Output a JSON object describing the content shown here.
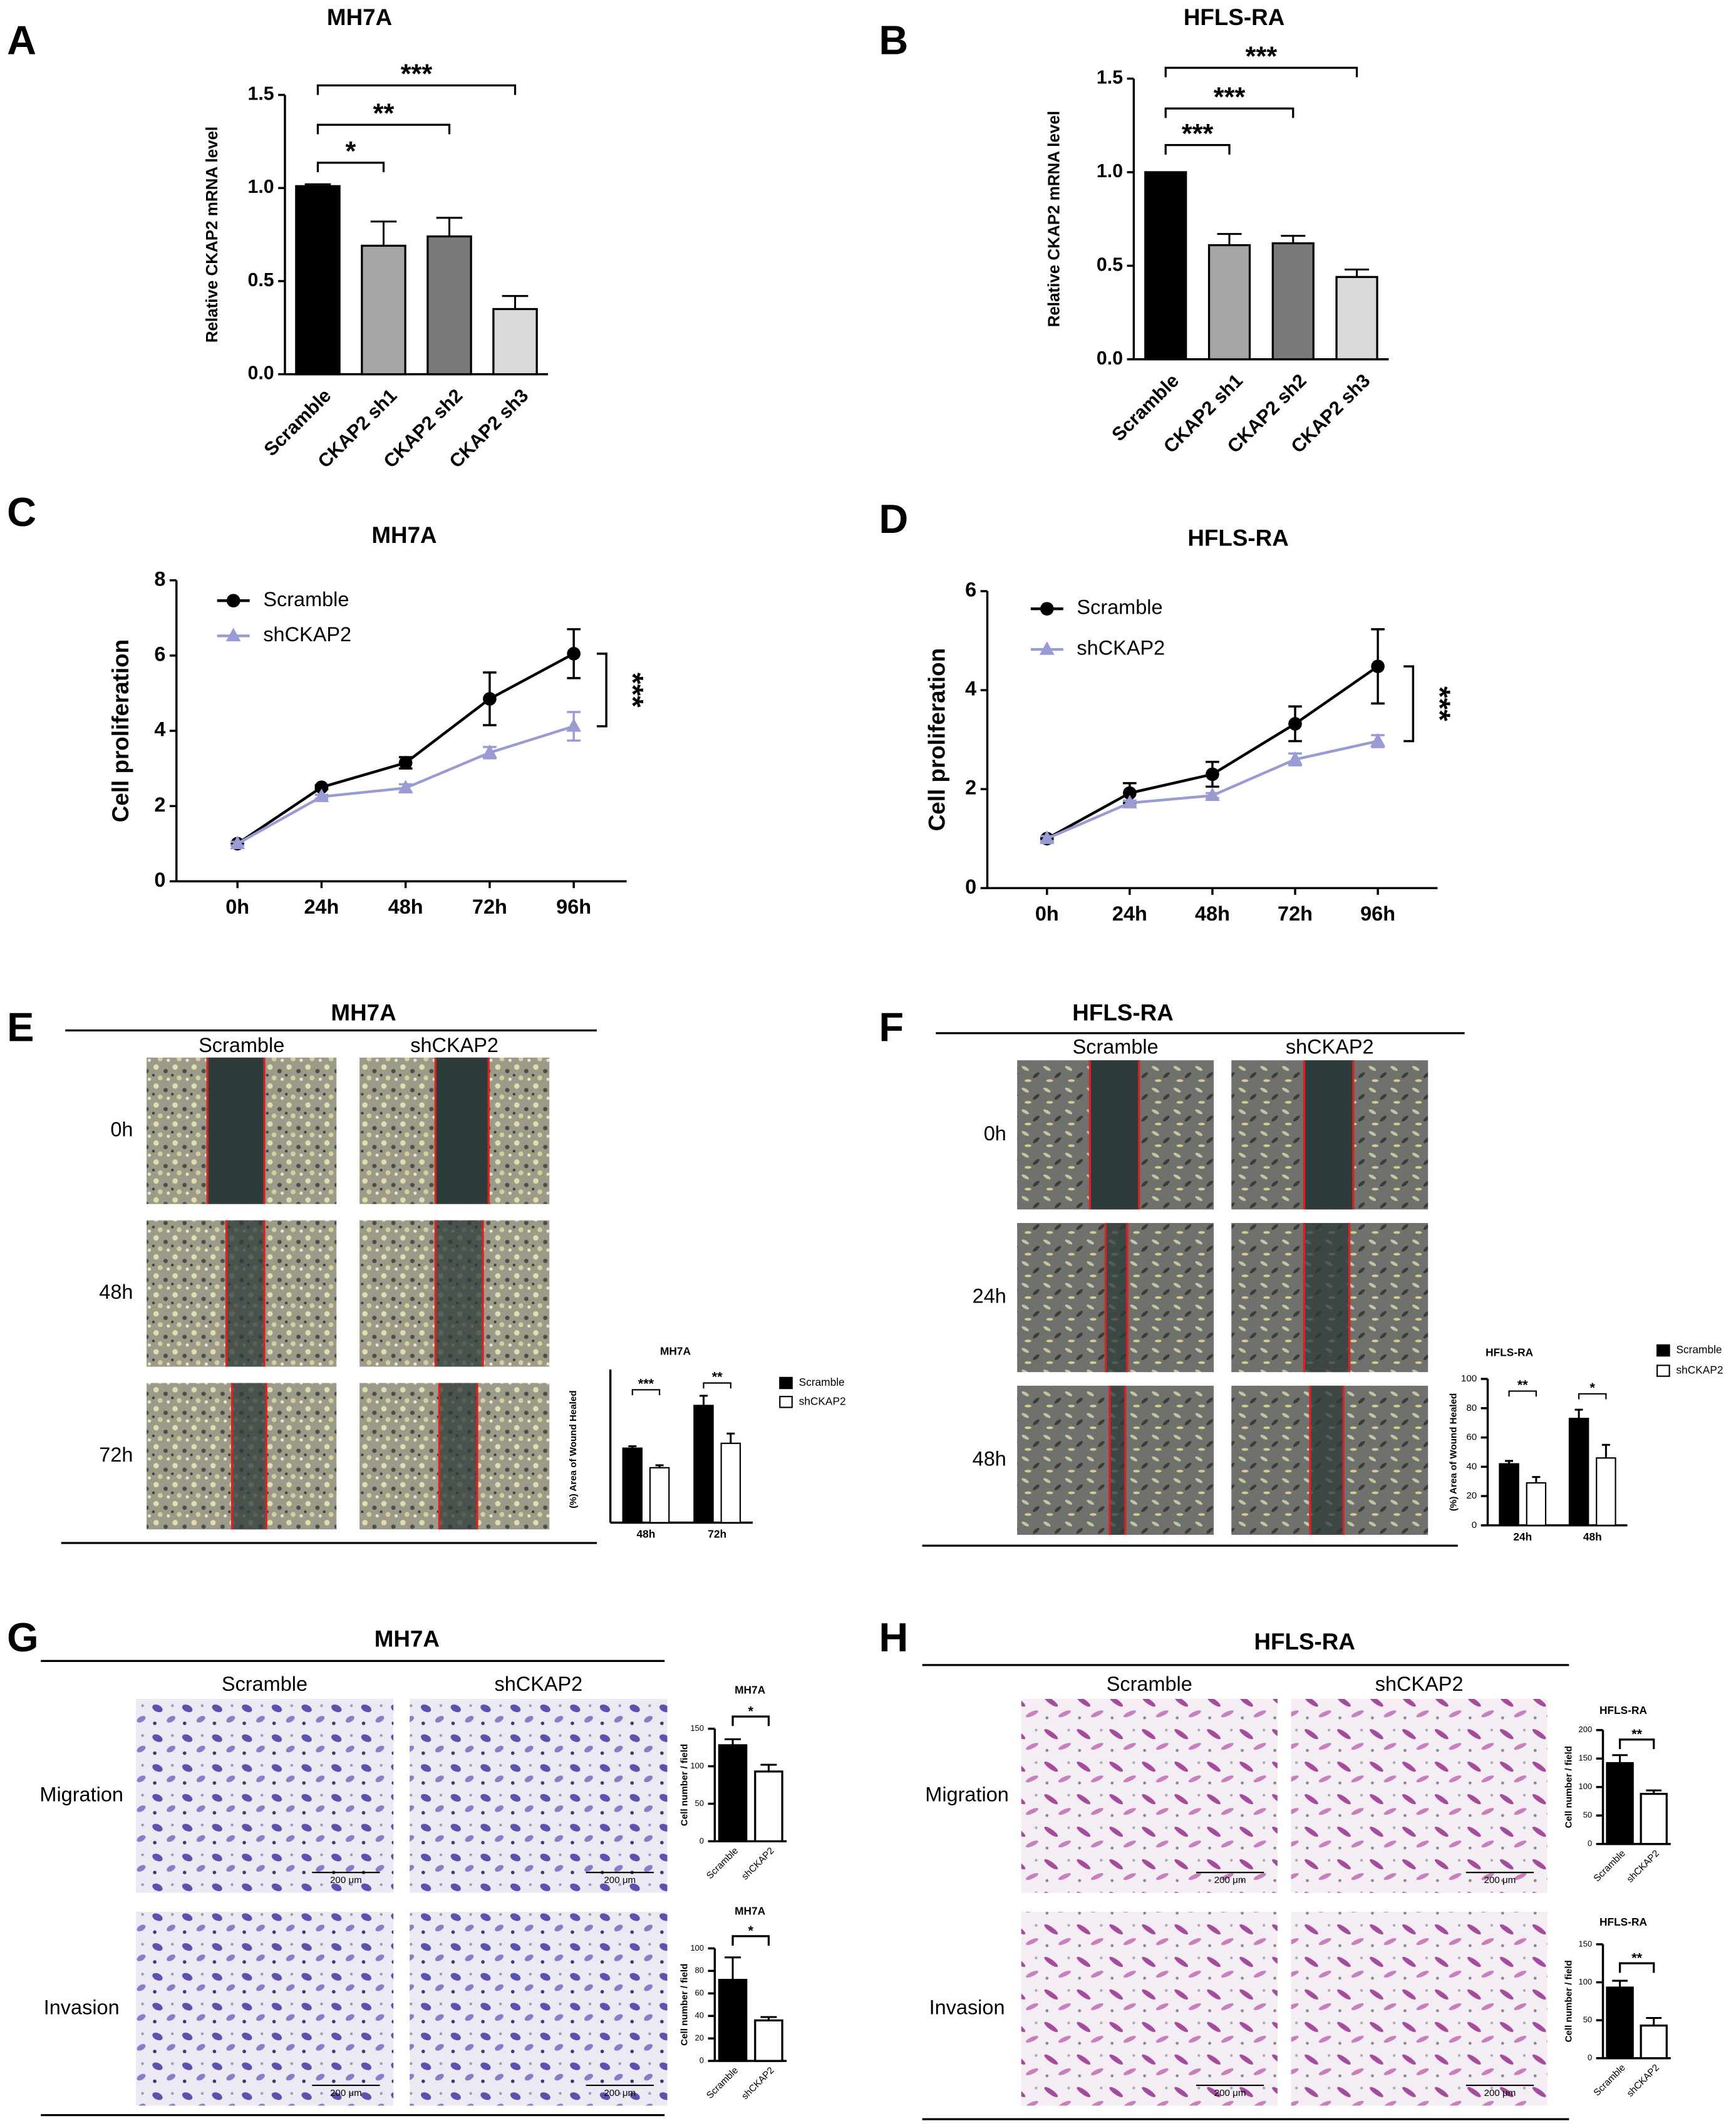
{
  "chart_data": [
    {
      "panel": "A",
      "type": "bar",
      "title": "MH7A",
      "y_label": "Relative CKAP2 mRNA level",
      "categories": [
        "Scramble",
        "CKAP2 sh1",
        "CKAP2 sh2",
        "CKAP2 sh3"
      ],
      "values": [
        1.01,
        0.69,
        0.74,
        0.35
      ],
      "errors": [
        0.01,
        0.13,
        0.1,
        0.07
      ],
      "colors": [
        "#000000",
        "#a6a6a6",
        "#7a7a7a",
        "#d9d9d9"
      ],
      "ylim": [
        0,
        1.5
      ],
      "yticks": [
        {
          "value": 0,
          "label": "0.0"
        },
        0.5,
        {
          "value": 1,
          "label": "1.0"
        },
        1.5
      ],
      "annotations": [
        "*",
        "**",
        "***"
      ]
    },
    {
      "panel": "B",
      "type": "bar",
      "title": "HFLS-RA",
      "y_label": "Relative CKAP2 mRNA level",
      "categories": [
        "Scramble",
        "CKAP2 sh1",
        "CKAP2 sh2",
        "CKAP2 sh3"
      ],
      "values": [
        1.0,
        0.61,
        0.62,
        0.44
      ],
      "errors": [
        0.0,
        0.06,
        0.04,
        0.04
      ],
      "colors": [
        "#000000",
        "#a6a6a6",
        "#7a7a7a",
        "#d9d9d9"
      ],
      "ylim": [
        0,
        1.5
      ],
      "yticks": [
        {
          "value": 0,
          "label": "0.0"
        },
        0.5,
        {
          "value": 1,
          "label": "1.0"
        },
        1.5
      ],
      "annotations": [
        "***",
        "***",
        "***"
      ]
    },
    {
      "panel": "C",
      "type": "line",
      "title": "MH7A",
      "y_label": "Cell proliferation",
      "categories": [
        "0h",
        "24h",
        "48h",
        "72h",
        "96h"
      ],
      "series": [
        {
          "name": "Scramble",
          "color": "#000000",
          "marker": "circle",
          "values": [
            1.0,
            2.5,
            3.15,
            4.85,
            6.05
          ],
          "errors": [
            0.05,
            0.05,
            0.15,
            0.7,
            0.65
          ]
        },
        {
          "name": "shCKAP2",
          "color": "#9b9bd4",
          "marker": "triangle",
          "values": [
            1.0,
            2.25,
            2.48,
            3.42,
            4.12
          ],
          "errors": [
            0.05,
            0.05,
            0.1,
            0.15,
            0.38
          ]
        }
      ],
      "ylim": [
        0,
        8
      ],
      "yticks": [
        0,
        2,
        4,
        6,
        8
      ],
      "annotations": [
        "***"
      ]
    },
    {
      "panel": "D",
      "type": "line",
      "title": "HFLS-RA",
      "y_label": "Cell proliferation",
      "categories": [
        "0h",
        "24h",
        "48h",
        "72h",
        "96h"
      ],
      "series": [
        {
          "name": "Scramble",
          "color": "#000000",
          "marker": "circle",
          "values": [
            1.0,
            1.92,
            2.3,
            3.32,
            4.48
          ],
          "errors": [
            0.05,
            0.2,
            0.25,
            0.35,
            0.75
          ]
        },
        {
          "name": "shCKAP2",
          "color": "#9b9bd4",
          "marker": "triangle",
          "values": [
            1.0,
            1.72,
            1.87,
            2.6,
            2.97
          ],
          "errors": [
            0.05,
            0.05,
            0.05,
            0.12,
            0.12
          ]
        }
      ],
      "ylim": [
        0,
        6
      ],
      "yticks": [
        0,
        2,
        4,
        6
      ],
      "annotations": [
        "***"
      ]
    },
    {
      "type": "grouped_bar",
      "title": "MH7A",
      "y_label": "(%) Area of Wound Healed",
      "categories": [
        "48h",
        "72h"
      ],
      "series": [
        {
          "name": "Scramble",
          "color": "#000000",
          "values": [
            30.5,
            48
          ],
          "errors": [
            0.8,
            4
          ]
        },
        {
          "name": "shCKAP2",
          "color": "#ffffff",
          "values": [
            22.5,
            32.5
          ],
          "errors": [
            1,
            4
          ]
        }
      ],
      "ylim": [
        0,
        60
      ],
      "annotations": [
        "***",
        "**"
      ]
    },
    {
      "type": "grouped_bar",
      "title": "HFLS-RA",
      "y_label": "(%) Area of Wound Healed",
      "categories": [
        "24h",
        "48h"
      ],
      "series": [
        {
          "name": "Scramble",
          "color": "#000000",
          "values": [
            42,
            73
          ],
          "errors": [
            2,
            6
          ]
        },
        {
          "name": "shCKAP2",
          "color": "#ffffff",
          "values": [
            29,
            46
          ],
          "errors": [
            4,
            9
          ]
        }
      ],
      "ylim": [
        0,
        100
      ],
      "yticks": [
        0,
        20,
        40,
        60,
        80,
        100
      ],
      "annotations": [
        "**",
        "*"
      ]
    },
    {
      "type": "bar",
      "title": "MH7A",
      "y_label": "Cell number / field",
      "categories": [
        "Scramble",
        "shCKAP2"
      ],
      "values": [
        128,
        93
      ],
      "errors": [
        8,
        9
      ],
      "colors": [
        "#000000",
        "#ffffff"
      ],
      "ylim": [
        0,
        150
      ],
      "yticks": [
        0,
        50,
        100,
        150
      ],
      "annotations": [
        "*"
      ]
    },
    {
      "type": "bar",
      "title": "MH7A",
      "y_label": "Cell number / field",
      "categories": [
        "Scramble",
        "shCKAP2"
      ],
      "values": [
        72,
        36
      ],
      "errors": [
        20,
        3
      ],
      "colors": [
        "#000000",
        "#ffffff"
      ],
      "ylim": [
        0,
        100
      ],
      "yticks": [
        0,
        20,
        40,
        60,
        80,
        100
      ],
      "annotations": [
        "*"
      ]
    },
    {
      "type": "bar",
      "title": "HFLS-RA",
      "y_label": "Cell number / field",
      "categories": [
        "Scramble",
        "shCKAP2"
      ],
      "values": [
        142,
        88
      ],
      "errors": [
        14,
        6
      ],
      "colors": [
        "#000000",
        "#ffffff"
      ],
      "ylim": [
        0,
        200
      ],
      "yticks": [
        0,
        50,
        100,
        150,
        200
      ],
      "annotations": [
        "**"
      ]
    },
    {
      "type": "bar",
      "title": "HFLS-RA",
      "y_label": "Cell number / field",
      "categories": [
        "Scramble",
        "shCKAP2"
      ],
      "values": [
        93,
        43
      ],
      "errors": [
        9,
        10
      ],
      "colors": [
        "#000000",
        "#ffffff"
      ],
      "ylim": [
        0,
        150
      ],
      "yticks": [
        0,
        50,
        100,
        150
      ],
      "annotations": [
        "**"
      ]
    }
  ],
  "image_panels": [
    {
      "panel": "E",
      "title": "MH7A",
      "columns": [
        "Scramble",
        "shCKAP2"
      ],
      "rows": [
        "0h",
        "48h",
        "72h"
      ]
    },
    {
      "panel": "F",
      "title": "HFLS-RA",
      "columns": [
        "Scramble",
        "shCKAP2"
      ],
      "rows": [
        "0h",
        "24h",
        "48h"
      ]
    },
    {
      "panel": "G",
      "title": "MH7A",
      "columns": [
        "Scramble",
        "shCKAP2"
      ],
      "rows": [
        "Migration",
        "Invasion"
      ],
      "scale_label": "200 μm"
    },
    {
      "panel": "H",
      "title": "HFLS-RA",
      "columns": [
        "Scramble",
        "shCKAP2"
      ],
      "rows": [
        "Migration",
        "Invasion"
      ],
      "scale_label": "200 μm"
    }
  ]
}
